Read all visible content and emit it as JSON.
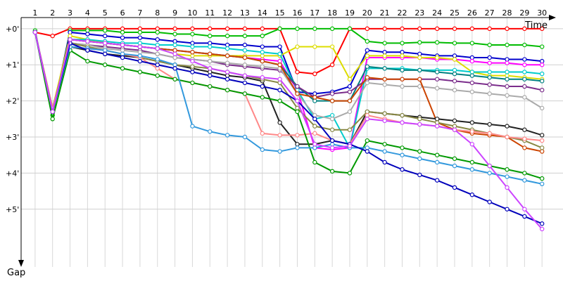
{
  "chart_data": {
    "type": "line",
    "title": "",
    "xlabel": "Time",
    "ylabel": "Gap",
    "x": [
      1,
      2,
      3,
      4,
      5,
      6,
      7,
      8,
      9,
      10,
      11,
      12,
      13,
      14,
      15,
      16,
      17,
      18,
      19,
      20,
      21,
      22,
      23,
      24,
      25,
      26,
      27,
      28,
      29,
      30
    ],
    "x_tick_labels": [
      "1",
      "2",
      "3",
      "4",
      "5",
      "6",
      "7",
      "8",
      "9",
      "10",
      "11",
      "12",
      "13",
      "14",
      "15",
      "16",
      "17",
      "18",
      "19",
      "20",
      "21",
      "22",
      "23",
      "24",
      "25",
      "26",
      "27",
      "28",
      "29",
      "30"
    ],
    "y_tick_values": [
      0,
      1,
      2,
      3,
      4,
      5
    ],
    "y_tick_labels": [
      "+0'",
      "+1'",
      "+2'",
      "+3'",
      "+4'",
      "+5'"
    ],
    "xlim": [
      0.2,
      31.2
    ],
    "ylim": [
      -0.6,
      6.6
    ],
    "y_inverted": true,
    "grid": true,
    "legend": "none",
    "series": [
      {
        "color": "#ff0000",
        "values": [
          0.1,
          0.2,
          0,
          0,
          0,
          0,
          0,
          0,
          0,
          0,
          0,
          0,
          0,
          0,
          0,
          1.2,
          1.25,
          1.0,
          0,
          0,
          0,
          0,
          0,
          0,
          0,
          0,
          0,
          0,
          0,
          0
        ]
      },
      {
        "color": "#00bb00",
        "values": [
          0.05,
          2.4,
          0.05,
          0.05,
          0.05,
          0.1,
          0.1,
          0.1,
          0.15,
          0.15,
          0.2,
          0.2,
          0.2,
          0.2,
          0,
          0,
          0,
          0,
          0,
          0.35,
          0.4,
          0.4,
          0.38,
          0.38,
          0.4,
          0.4,
          0.45,
          0.45,
          0.45,
          0.5
        ]
      },
      {
        "color": "#0000cc",
        "values": [
          0.1,
          2.3,
          0.1,
          0.15,
          0.2,
          0.25,
          0.25,
          0.3,
          0.35,
          0.4,
          0.4,
          0.45,
          0.45,
          0.5,
          0.5,
          1.75,
          1.8,
          1.75,
          1.6,
          0.6,
          0.65,
          0.65,
          0.7,
          0.75,
          0.75,
          0.8,
          0.8,
          0.85,
          0.85,
          0.9
        ]
      },
      {
        "color": "#ff00ff",
        "values": [
          0.1,
          2.3,
          0.3,
          0.35,
          0.4,
          0.45,
          0.5,
          0.55,
          0.6,
          0.65,
          0.7,
          0.75,
          0.8,
          0.85,
          0.9,
          1.7,
          3.3,
          3.35,
          3.3,
          0.8,
          0.8,
          0.8,
          0.8,
          0.85,
          0.85,
          0.9,
          0.95,
          0.95,
          1.0,
          1.0
        ]
      },
      {
        "color": "#dddd00",
        "values": [
          0.1,
          2.2,
          0.2,
          0.3,
          0.4,
          0.45,
          0.5,
          0.55,
          0.7,
          0.75,
          0.75,
          0.75,
          0.75,
          0.75,
          0.75,
          0.5,
          0.5,
          0.5,
          1.4,
          0.75,
          0.75,
          0.75,
          0.8,
          0.8,
          0.85,
          1.2,
          1.3,
          1.3,
          1.35,
          1.4
        ]
      },
      {
        "color": "#00cccc",
        "values": [
          0.1,
          2.3,
          0.3,
          0.3,
          0.35,
          0.4,
          0.4,
          0.45,
          0.45,
          0.5,
          0.5,
          0.55,
          0.6,
          0.65,
          0.7,
          1.7,
          2.5,
          2.4,
          3.3,
          1.1,
          1.1,
          1.1,
          1.15,
          1.15,
          1.15,
          1.2,
          1.2,
          1.2,
          1.2,
          1.25
        ]
      },
      {
        "color": "#008080",
        "values": [
          0.1,
          2.3,
          0.3,
          0.35,
          0.4,
          0.45,
          0.5,
          0.55,
          0.6,
          0.65,
          0.7,
          0.75,
          0.8,
          0.9,
          1.0,
          1.6,
          2.0,
          2.0,
          2.0,
          1.05,
          1.1,
          1.15,
          1.15,
          1.2,
          1.25,
          1.3,
          1.35,
          1.4,
          1.4,
          1.45
        ]
      },
      {
        "color": "#7b2d8b",
        "values": [
          0.1,
          2.3,
          0.4,
          0.45,
          0.5,
          0.55,
          0.6,
          0.7,
          0.8,
          0.85,
          0.9,
          1.0,
          1.05,
          1.1,
          1.15,
          1.6,
          1.9,
          1.8,
          1.75,
          1.4,
          1.4,
          1.4,
          1.4,
          1.4,
          1.45,
          1.5,
          1.55,
          1.6,
          1.6,
          1.7
        ]
      },
      {
        "color": "#aaaaaa",
        "values": [
          0.1,
          2.3,
          0.4,
          0.45,
          0.55,
          0.6,
          0.65,
          0.7,
          0.8,
          0.85,
          0.9,
          0.95,
          1.0,
          1.05,
          1.1,
          1.8,
          2.4,
          2.5,
          2.3,
          1.5,
          1.55,
          1.6,
          1.6,
          1.65,
          1.7,
          1.75,
          1.8,
          1.85,
          1.9,
          2.2
        ]
      },
      {
        "color": "#cc4400",
        "values": [
          0.1,
          2.3,
          0.3,
          0.35,
          0.4,
          0.45,
          0.5,
          0.55,
          0.6,
          0.65,
          0.7,
          0.75,
          0.8,
          0.9,
          1.0,
          1.8,
          1.9,
          2.0,
          2.0,
          1.35,
          1.4,
          1.4,
          1.4,
          2.6,
          2.8,
          2.9,
          2.95,
          3.0,
          3.3,
          3.4
        ]
      },
      {
        "color": "#222222",
        "values": [
          0.1,
          2.3,
          0.5,
          0.6,
          0.7,
          0.75,
          0.8,
          0.9,
          1.0,
          1.1,
          1.2,
          1.3,
          1.35,
          1.45,
          2.6,
          3.2,
          3.2,
          3.1,
          3.2,
          2.3,
          2.35,
          2.4,
          2.45,
          2.5,
          2.55,
          2.6,
          2.65,
          2.7,
          2.8,
          2.95
        ]
      },
      {
        "color": "#888844",
        "values": [
          0.1,
          2.2,
          0.4,
          0.5,
          0.6,
          0.7,
          0.8,
          0.9,
          1.0,
          1.05,
          1.1,
          1.2,
          1.3,
          1.4,
          1.5,
          2.2,
          2.7,
          2.8,
          2.8,
          2.3,
          2.35,
          2.4,
          2.5,
          2.6,
          2.7,
          2.8,
          2.9,
          3.0,
          3.1,
          3.3
        ]
      },
      {
        "color": "#ff8888",
        "values": [
          0.1,
          2.2,
          0.5,
          0.55,
          0.6,
          0.7,
          0.8,
          1.1,
          1.4,
          1.5,
          1.6,
          1.7,
          1.8,
          2.9,
          2.95,
          2.95,
          2.9,
          3.1,
          3.2,
          2.4,
          2.5,
          2.6,
          2.65,
          2.7,
          2.8,
          2.85,
          2.9,
          3.0,
          3.05,
          3.1
        ]
      },
      {
        "color": "#009900",
        "values": [
          0.1,
          2.5,
          0.6,
          0.9,
          1.0,
          1.1,
          1.2,
          1.3,
          1.4,
          1.5,
          1.6,
          1.7,
          1.8,
          1.9,
          2.0,
          2.3,
          3.7,
          3.95,
          4.0,
          3.1,
          3.2,
          3.3,
          3.4,
          3.5,
          3.6,
          3.7,
          3.8,
          3.9,
          4.0,
          4.15
        ]
      },
      {
        "color": "#3399dd",
        "values": [
          0.1,
          2.3,
          0.5,
          0.55,
          0.6,
          0.7,
          0.75,
          0.85,
          1.0,
          2.7,
          2.85,
          2.95,
          3.0,
          3.35,
          3.4,
          3.3,
          3.3,
          3.2,
          3.3,
          3.3,
          3.4,
          3.5,
          3.6,
          3.7,
          3.8,
          3.9,
          4.0,
          4.1,
          4.2,
          4.3
        ]
      },
      {
        "color": "#0000bb",
        "values": [
          0.1,
          2.3,
          0.4,
          0.6,
          0.7,
          0.8,
          0.9,
          1.0,
          1.1,
          1.2,
          1.3,
          1.4,
          1.5,
          1.6,
          1.7,
          2.0,
          2.5,
          3.1,
          3.2,
          3.4,
          3.7,
          3.9,
          4.05,
          4.2,
          4.4,
          4.6,
          4.8,
          5.0,
          5.2,
          5.4
        ]
      },
      {
        "color": "#cc44ff",
        "values": [
          0.1,
          2.3,
          0.3,
          0.35,
          0.4,
          0.45,
          0.5,
          0.55,
          0.7,
          0.9,
          1.1,
          1.2,
          1.3,
          1.35,
          1.4,
          2.0,
          3.2,
          3.3,
          3.25,
          2.5,
          2.55,
          2.6,
          2.65,
          2.7,
          2.8,
          3.2,
          3.8,
          4.4,
          5.0,
          5.55
        ]
      }
    ]
  }
}
